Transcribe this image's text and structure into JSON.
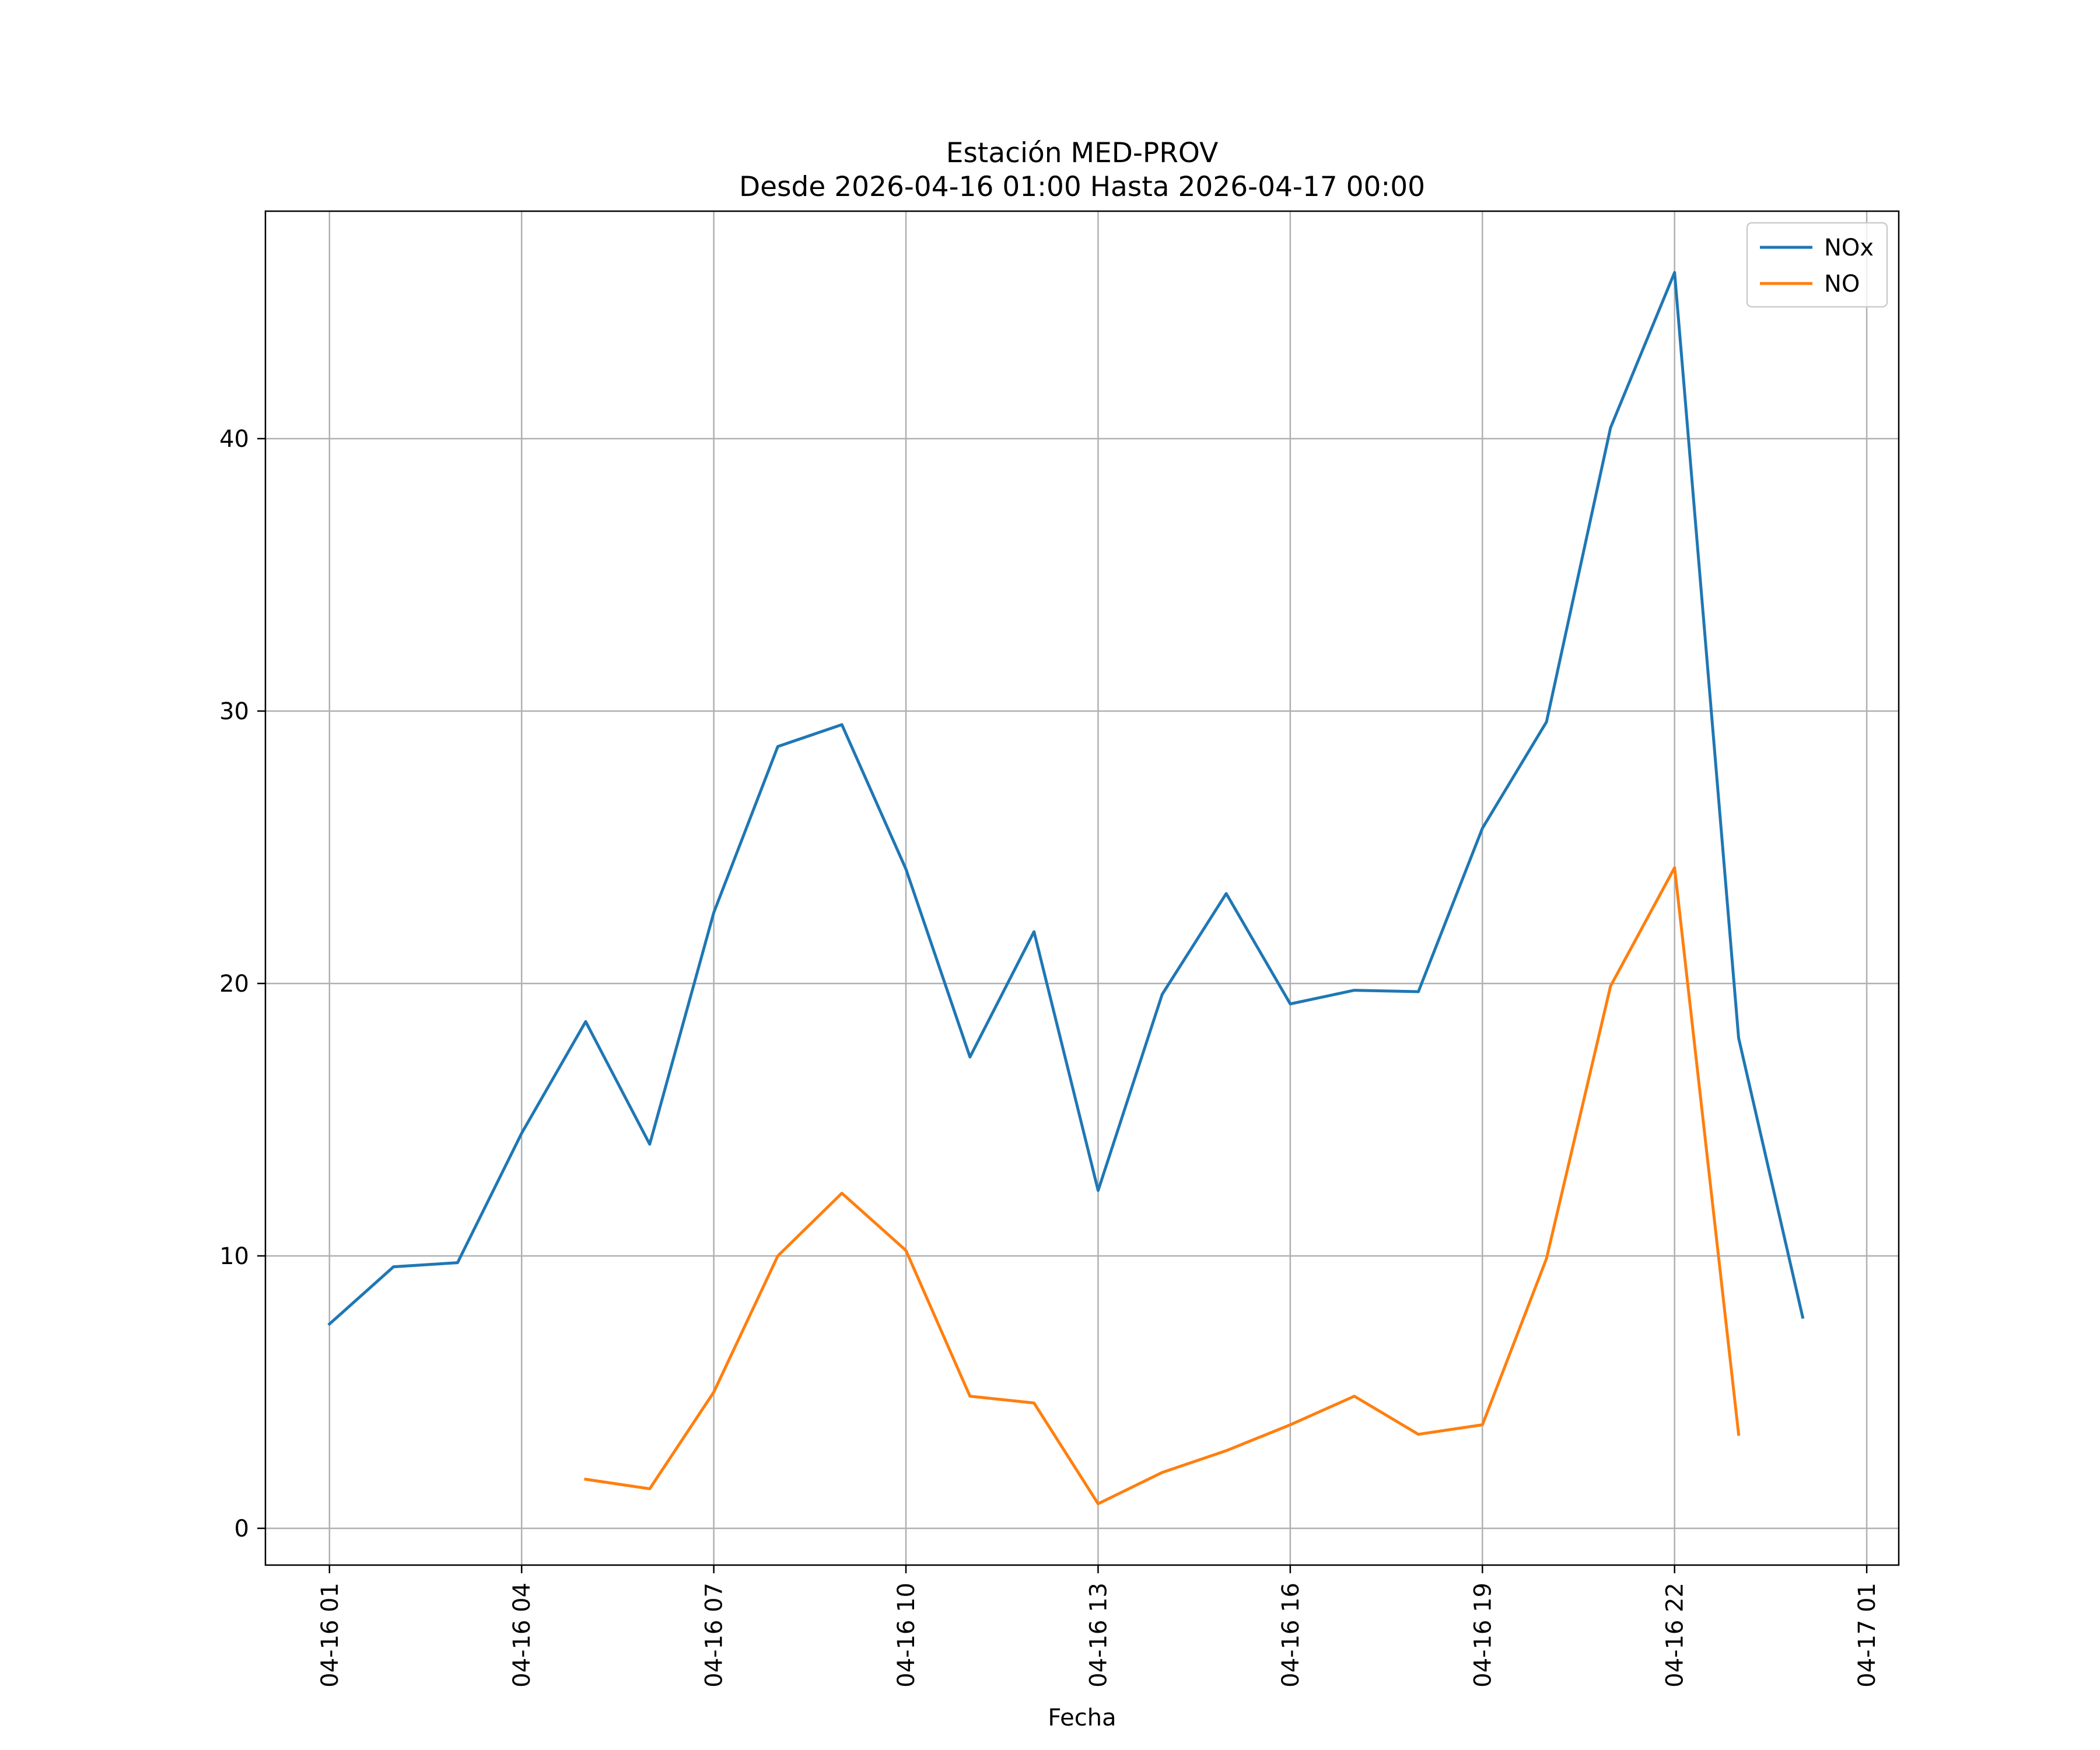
{
  "chart_data": {
    "type": "line",
    "title": "Estación MED-PROV",
    "subtitle": "Desde 2026-04-16 01:00 Hasta 2026-04-17 00:00",
    "xlabel": "Fecha",
    "ylabel": "",
    "x": [
      "2026-04-16 01:00",
      "2026-04-16 02:00",
      "2026-04-16 03:00",
      "2026-04-16 04:00",
      "2026-04-16 05:00",
      "2026-04-16 06:00",
      "2026-04-16 07:00",
      "2026-04-16 08:00",
      "2026-04-16 09:00",
      "2026-04-16 10:00",
      "2026-04-16 11:00",
      "2026-04-16 12:00",
      "2026-04-16 13:00",
      "2026-04-16 14:00",
      "2026-04-16 15:00",
      "2026-04-16 16:00",
      "2026-04-16 17:00",
      "2026-04-16 18:00",
      "2026-04-16 19:00",
      "2026-04-16 20:00",
      "2026-04-16 21:00",
      "2026-04-16 22:00",
      "2026-04-16 23:00",
      "2026-04-17 00:00"
    ],
    "series": [
      {
        "name": "NOx",
        "color": "#1f77b4",
        "values": [
          7.5,
          9.6,
          9.75,
          14.5,
          18.6,
          14.1,
          22.6,
          28.7,
          29.5,
          24.2,
          17.3,
          21.9,
          12.4,
          19.6,
          23.3,
          19.25,
          19.75,
          19.7,
          25.7,
          29.6,
          40.4,
          46.1,
          18.0,
          7.75
        ]
      },
      {
        "name": "NO",
        "color": "#ff7f0e",
        "values": [
          null,
          null,
          null,
          null,
          1.8,
          1.45,
          5.0,
          10.0,
          12.3,
          10.2,
          4.85,
          4.6,
          0.9,
          2.05,
          2.85,
          3.8,
          4.85,
          3.45,
          3.8,
          9.9,
          19.9,
          24.25,
          3.45,
          null
        ]
      }
    ],
    "xticks": [
      "04-16 01",
      "04-16 04",
      "04-16 07",
      "04-16 10",
      "04-16 13",
      "04-16 16",
      "04-16 19",
      "04-16 22",
      "04-17 01"
    ],
    "yticks": [
      "0",
      "10",
      "20",
      "30",
      "40"
    ],
    "ylim": [
      -1.35,
      48.35
    ],
    "xlim": [
      "2026-04-16 00:00",
      "2026-04-17 01:30"
    ],
    "grid": true,
    "legend_position": "top-right"
  }
}
